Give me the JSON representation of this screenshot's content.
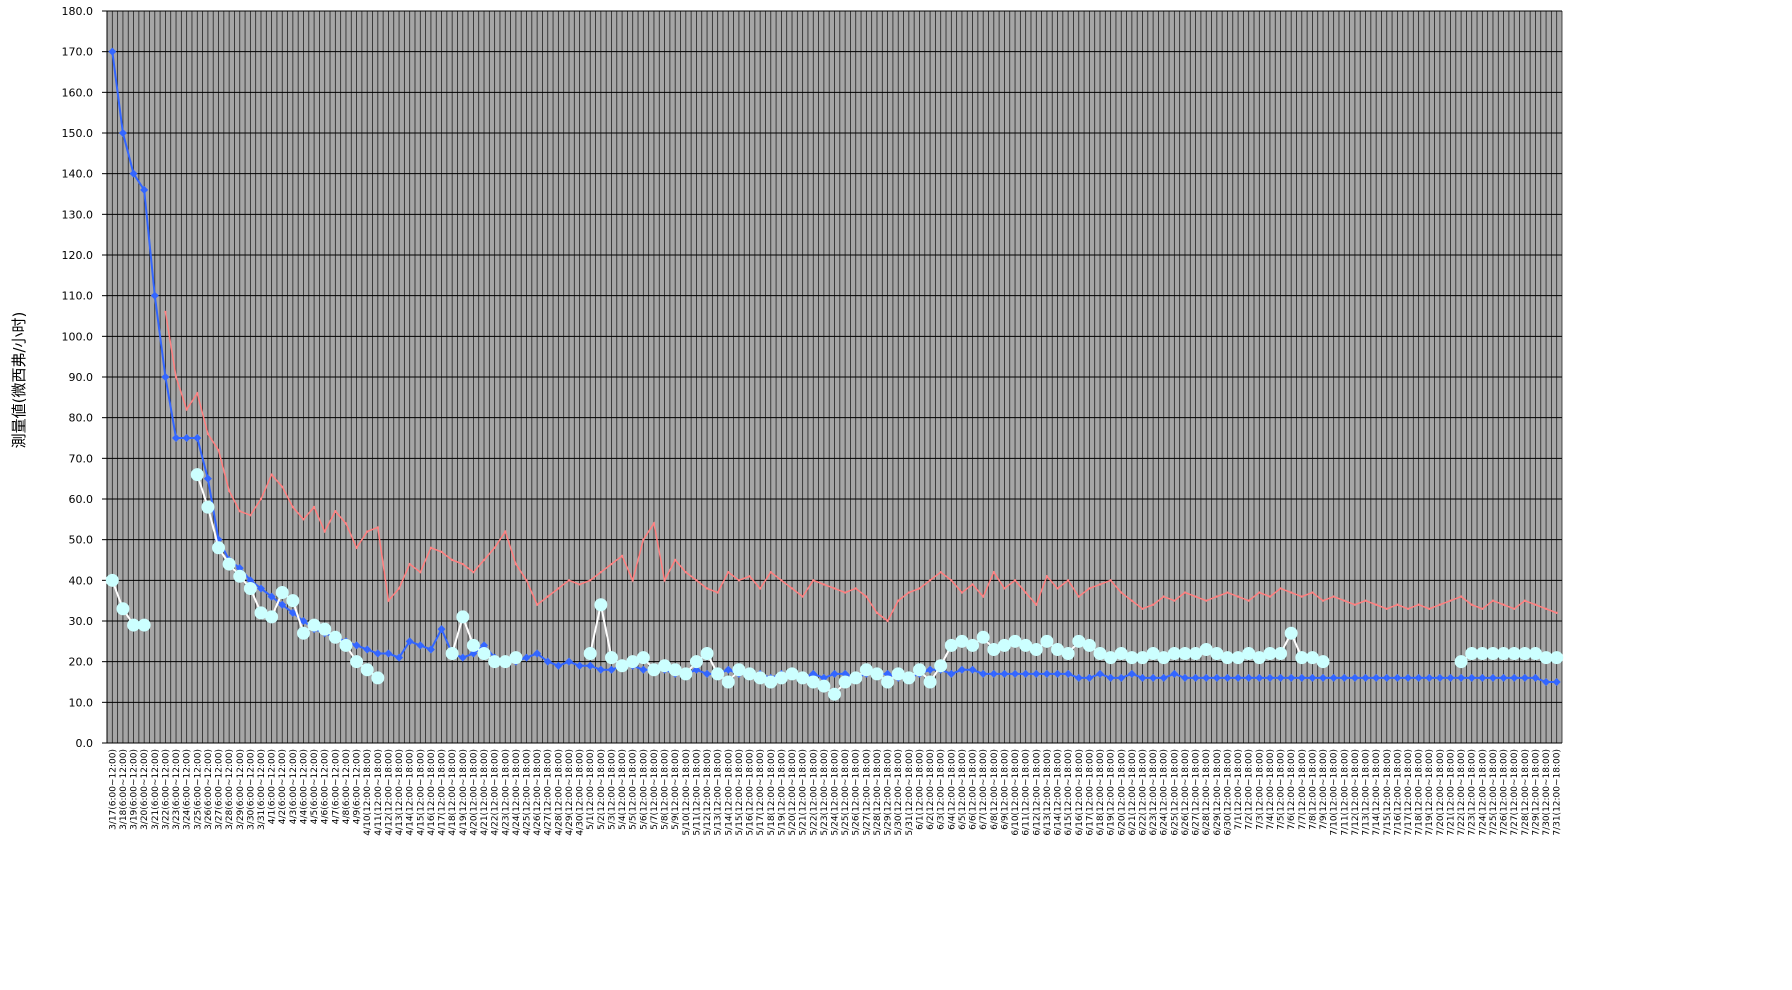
{
  "chart_data": {
    "type": "line",
    "y_label": "測量値(微西弗/小时)",
    "ylim": [
      0,
      180
    ],
    "yticks": [
      {
        "value": 0,
        "label": "0.0"
      },
      {
        "value": 10,
        "label": "10.0"
      },
      {
        "value": 20,
        "label": "20.0"
      },
      {
        "value": 30,
        "label": "30.0"
      },
      {
        "value": 40,
        "label": "40.0"
      },
      {
        "value": 50,
        "label": "50.0"
      },
      {
        "value": 60,
        "label": "60.0"
      },
      {
        "value": 70,
        "label": "70.0"
      },
      {
        "value": 80,
        "label": "80.0"
      },
      {
        "value": 90,
        "label": "90.0"
      },
      {
        "value": 100,
        "label": "100.0"
      },
      {
        "value": 110,
        "label": "110.0"
      },
      {
        "value": 120,
        "label": "120.0"
      },
      {
        "value": 130,
        "label": "130.0"
      },
      {
        "value": 140,
        "label": "140.0"
      },
      {
        "value": 150,
        "label": "150.0"
      },
      {
        "value": 160,
        "label": "160.0"
      },
      {
        "value": 170,
        "label": "170.0"
      },
      {
        "value": 180,
        "label": "180.0"
      }
    ],
    "grid": true,
    "categories": [
      "3/17(6:00~12:00)",
      "3/18(6:00~12:00)",
      "3/19(6:00~12:00)",
      "3/20(6:00~12:00)",
      "3/21(6:00~12:00)",
      "3/22(6:00~12:00)",
      "3/23(6:00~12:00)",
      "3/24(6:00~12:00)",
      "3/25(6:00~12:00)",
      "3/26(6:00~12:00)",
      "3/27(6:00~12:00)",
      "3/28(6:00~12:00)",
      "3/29(6:00~12:00)",
      "3/30(6:00~12:00)",
      "3/31(6:00~12:00)",
      "4/1(6:00~12:00)",
      "4/2(6:00~12:00)",
      "4/3(6:00~12:00)",
      "4/4(6:00~12:00)",
      "4/5(6:00~12:00)",
      "4/6(6:00~12:00)",
      "4/7(6:00~12:00)",
      "4/8(6:00~12:00)",
      "4/9(6:00~12:00)",
      "4/10(12:00~18:00)",
      "4/11(12:00~18:00)",
      "4/12(12:00~18:00)",
      "4/13(12:00~18:00)",
      "4/14(12:00~18:00)",
      "4/15(12:00~18:00)",
      "4/16(12:00~18:00)",
      "4/17(12:00~18:00)",
      "4/18(12:00~18:00)",
      "4/19(12:00~18:00)",
      "4/20(12:00~18:00)",
      "4/21(12:00~18:00)",
      "4/22(12:00~18:00)",
      "4/23(12:00~18:00)",
      "4/24(12:00~18:00)",
      "4/25(12:00~18:00)",
      "4/26(12:00~18:00)",
      "4/27(12:00~18:00)",
      "4/28(12:00~18:00)",
      "4/29(12:00~18:00)",
      "4/30(12:00~18:00)",
      "5/1(12:00~18:00)",
      "5/2(12:00~18:00)",
      "5/3(12:00~18:00)",
      "5/4(12:00~18:00)",
      "5/5(12:00~18:00)",
      "5/6(12:00~18:00)",
      "5/7(12:00~18:00)",
      "5/8(12:00~18:00)",
      "5/9(12:00~18:00)",
      "5/10(12:00~18:00)",
      "5/11(12:00~18:00)",
      "5/12(12:00~18:00)",
      "5/13(12:00~18:00)",
      "5/14(12:00~18:00)",
      "5/15(12:00~18:00)",
      "5/16(12:00~18:00)",
      "5/17(12:00~18:00)",
      "5/18(12:00~18:00)",
      "5/19(12:00~18:00)",
      "5/20(12:00~18:00)",
      "5/21(12:00~18:00)",
      "5/22(12:00~18:00)",
      "5/23(12:00~18:00)",
      "5/24(12:00~18:00)",
      "5/25(12:00~18:00)",
      "5/26(12:00~18:00)",
      "5/27(12:00~18:00)",
      "5/28(12:00~18:00)",
      "5/29(12:00~18:00)",
      "5/30(12:00~18:00)",
      "5/31(12:00~18:00)",
      "6/1(12:00~18:00)",
      "6/2(12:00~18:00)",
      "6/3(12:00~18:00)",
      "6/4(12:00~18:00)",
      "6/5(12:00~18:00)",
      "6/6(12:00~18:00)",
      "6/7(12:00~18:00)",
      "6/8(12:00~18:00)",
      "6/9(12:00~18:00)",
      "6/10(12:00~18:00)",
      "6/11(12:00~18:00)",
      "6/12(12:00~18:00)",
      "6/13(12:00~18:00)",
      "6/14(12:00~18:00)",
      "6/15(12:00~18:00)",
      "6/16(12:00~18:00)",
      "6/17(12:00~18:00)",
      "6/18(12:00~18:00)",
      "6/19(12:00~18:00)",
      "6/20(12:00~18:00)",
      "6/21(12:00~18:00)",
      "6/22(12:00~18:00)",
      "6/23(12:00~18:00)",
      "6/24(12:00~18:00)",
      "6/25(12:00~18:00)",
      "6/26(12:00~18:00)",
      "6/27(12:00~18:00)",
      "6/28(12:00~18:00)",
      "6/29(12:00~18:00)",
      "6/30(12:00~18:00)",
      "7/1(12:00~18:00)",
      "7/2(12:00~18:00)",
      "7/3(12:00~18:00)",
      "7/4(12:00~18:00)",
      "7/5(12:00~18:00)",
      "7/6(12:00~18:00)",
      "7/7(12:00~18:00)",
      "7/8(12:00~18:00)",
      "7/9(12:00~18:00)",
      "7/10(12:00~18:00)",
      "7/11(12:00~18:00)",
      "7/12(12:00~18:00)",
      "7/13(12:00~18:00)",
      "7/14(12:00~18:00)",
      "7/15(12:00~18:00)",
      "7/16(12:00~18:00)",
      "7/17(12:00~18:00)",
      "7/18(12:00~18:00)",
      "7/19(12:00~18:00)",
      "7/20(12:00~18:00)",
      "7/21(12:00~18:00)",
      "7/22(12:00~18:00)",
      "7/23(12:00~18:00)",
      "7/24(12:00~18:00)",
      "7/25(12:00~18:00)",
      "7/26(12:00~18:00)",
      "7/27(12:00~18:00)",
      "7/28(12:00~18:00)",
      "7/29(12:00~18:00)",
      "7/30(12:00~18:00)",
      "7/31(12:00~18:00)"
    ],
    "series": [
      {
        "color": "#3366ff",
        "marker": "diamond",
        "values": [
          170,
          150,
          140,
          136,
          110,
          90,
          75,
          75,
          75,
          65,
          50,
          45,
          43,
          40,
          38,
          36,
          34,
          32,
          30,
          28,
          27,
          26,
          25,
          24,
          23,
          22,
          22,
          21,
          25,
          24,
          23,
          28,
          22,
          21,
          22,
          24,
          21,
          20,
          20,
          21,
          22,
          20,
          19,
          20,
          19,
          19,
          18,
          18,
          19,
          19,
          18,
          18,
          18,
          17,
          17,
          18,
          17,
          17,
          18,
          17,
          17,
          17,
          16,
          17,
          17,
          16,
          17,
          16,
          17,
          17,
          16,
          17,
          17,
          17,
          16,
          16,
          17,
          18,
          18,
          17,
          18,
          18,
          17,
          17,
          17,
          17,
          17,
          17,
          17,
          17,
          17,
          16,
          16,
          17,
          16,
          16,
          17,
          16,
          16,
          16,
          17,
          16,
          16,
          16,
          16,
          16,
          16,
          16,
          16,
          16,
          16,
          16,
          16,
          16,
          16,
          16,
          16,
          16,
          16,
          16,
          16,
          16,
          16,
          16,
          16,
          16,
          16,
          16,
          16,
          16,
          16,
          16,
          16,
          16,
          16,
          15,
          15
        ]
      },
      {
        "color": "#ff8080",
        "marker": "none",
        "values": [
          null,
          null,
          null,
          null,
          null,
          106,
          90,
          82,
          86,
          76,
          72,
          62,
          57,
          56,
          60,
          66,
          63,
          58,
          55,
          58,
          52,
          57,
          54,
          48,
          52,
          53,
          35,
          38,
          44,
          42,
          48,
          47,
          45,
          44,
          42,
          45,
          48,
          52,
          44,
          40,
          34,
          36,
          38,
          40,
          39,
          40,
          42,
          44,
          46,
          40,
          50,
          54,
          40,
          45,
          42,
          40,
          38,
          37,
          42,
          40,
          41,
          38,
          42,
          40,
          38,
          36,
          40,
          39,
          38,
          37,
          38,
          36,
          32,
          30,
          35,
          37,
          38,
          40,
          42,
          40,
          37,
          39,
          36,
          42,
          38,
          40,
          37,
          34,
          41,
          38,
          40,
          36,
          38,
          39,
          40,
          37,
          35,
          33,
          34,
          36,
          35,
          37,
          36,
          35,
          36,
          37,
          36,
          35,
          37,
          36,
          38,
          37,
          36,
          37,
          35,
          36,
          35,
          34,
          35,
          34,
          33,
          34,
          33,
          34,
          33,
          34,
          35,
          36,
          34,
          33,
          35,
          34,
          33,
          35,
          34,
          33,
          32
        ]
      },
      {
        "color": "#ccffff",
        "marker": "circle",
        "values": [
          40,
          33,
          29,
          29,
          null,
          null,
          null,
          null,
          66,
          58,
          48,
          44,
          41,
          38,
          32,
          31,
          37,
          35,
          27,
          29,
          28,
          26,
          24,
          20,
          18,
          16,
          null,
          null,
          null,
          null,
          null,
          null,
          22,
          31,
          24,
          22,
          20,
          20,
          21,
          null,
          null,
          null,
          null,
          null,
          null,
          22,
          34,
          21,
          19,
          20,
          21,
          18,
          19,
          18,
          17,
          20,
          22,
          17,
          15,
          18,
          17,
          16,
          15,
          16,
          17,
          16,
          15,
          14,
          12,
          15,
          16,
          18,
          17,
          15,
          17,
          16,
          18,
          15,
          19,
          24,
          25,
          24,
          26,
          23,
          24,
          25,
          24,
          23,
          25,
          23,
          22,
          25,
          24,
          22,
          21,
          22,
          21,
          21,
          22,
          21,
          22,
          22,
          22,
          23,
          22,
          21,
          21,
          22,
          21,
          22,
          22,
          27,
          21,
          21,
          20,
          null,
          null,
          null,
          null,
          null,
          null,
          null,
          null,
          null,
          null,
          null,
          null,
          20,
          22,
          22,
          22,
          22,
          22,
          22,
          22,
          21,
          21
        ]
      }
    ]
  }
}
